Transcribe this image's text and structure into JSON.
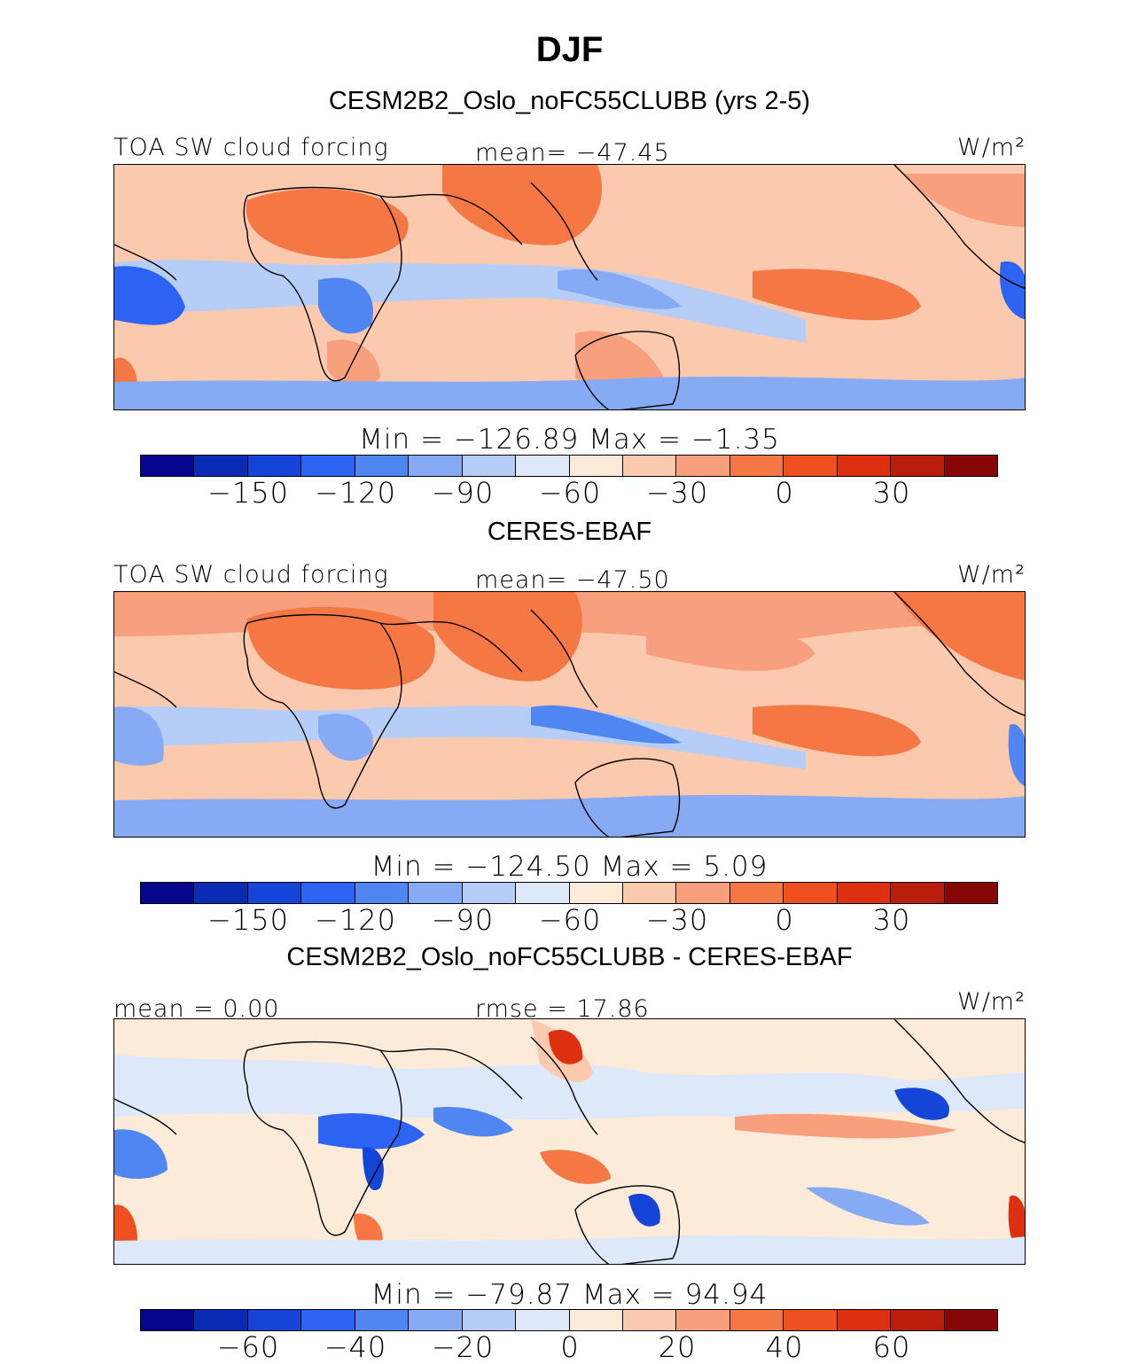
{
  "figure": {
    "title": "DJF"
  },
  "palette": [
    "#07068f",
    "#0a2cb4",
    "#1545d8",
    "#2c63f3",
    "#4f86f2",
    "#86aaf3",
    "#b6cef7",
    "#dde8fb",
    "#fdebd9",
    "#fbc9ad",
    "#f8a07d",
    "#f47744",
    "#ee5020",
    "#dd3010",
    "#b81e0b",
    "#870606"
  ],
  "panels": [
    {
      "heading": "CESM2B2_Oslo_noFC55CLUBB (yrs 2-5)",
      "left_label": "TOA SW cloud forcing",
      "center_label": "mean= −47.45",
      "units": "W/m²",
      "minmax": "Min  =  −126.89  Max  =    −1.35",
      "colorbar_ticks": [
        "−150",
        "−120",
        "−90",
        "−60",
        "−30",
        "0",
        "30"
      ]
    },
    {
      "heading": "CERES-EBAF",
      "left_label": "TOA SW cloud forcing",
      "center_label": "mean= −47.50",
      "units": "W/m²",
      "minmax": "Min  =  −124.50  Max  =     5.09",
      "colorbar_ticks": [
        "−150",
        "−120",
        "−90",
        "−60",
        "−30",
        "0",
        "30"
      ]
    },
    {
      "heading": "CESM2B2_Oslo_noFC55CLUBB - CERES-EBAF",
      "left_label": "mean  =    0.00",
      "center_label": "rmse  =   17.86",
      "units": "W/m²",
      "minmax": "Min  =  −79.87  Max  =    94.94",
      "colorbar_ticks": [
        "−60",
        "−40",
        "−20",
        "0",
        "20",
        "40",
        "60"
      ]
    }
  ]
}
